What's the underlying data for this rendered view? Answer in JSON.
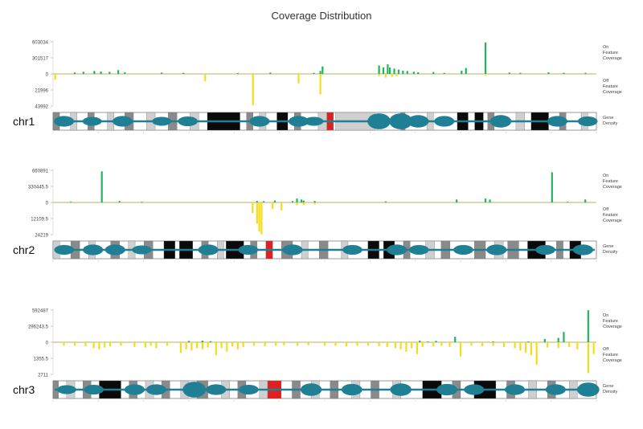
{
  "page": {
    "title": "Coverage Distribution"
  },
  "labels": {
    "on_feature": [
      "On",
      "Feature",
      "Coverage"
    ],
    "off_feature": [
      "Off",
      "Feature",
      "Coverage"
    ],
    "gene_density": [
      "Gene",
      "Density"
    ]
  },
  "colors": {
    "on_bar": "#22b35e",
    "off_bar": "#f5dc1a",
    "baseline": "#9c9c2a",
    "density": "#1f7f94",
    "centromere": "#e02020"
  },
  "chart_data": [
    {
      "type": "bar",
      "chromosome": "chr1",
      "x_range": [
        0,
        250
      ],
      "on_ticks": [
        "603034",
        "301517",
        "0"
      ],
      "off_ticks": [
        "21996",
        "43992"
      ],
      "on_max": 603034,
      "off_max": 43992,
      "on_bars": [
        {
          "x": 10,
          "v": 28000
        },
        {
          "x": 14,
          "v": 40000
        },
        {
          "x": 19,
          "v": 55000
        },
        {
          "x": 22,
          "v": 45000
        },
        {
          "x": 26,
          "v": 38000
        },
        {
          "x": 30,
          "v": 70000
        },
        {
          "x": 33,
          "v": 30000
        },
        {
          "x": 50,
          "v": 25000
        },
        {
          "x": 60,
          "v": 20000
        },
        {
          "x": 85,
          "v": 15000
        },
        {
          "x": 100,
          "v": 25000
        },
        {
          "x": 120,
          "v": 20000
        },
        {
          "x": 123,
          "v": 55000
        },
        {
          "x": 124,
          "v": 140000
        },
        {
          "x": 150,
          "v": 160000
        },
        {
          "x": 152,
          "v": 120000
        },
        {
          "x": 154,
          "v": 180000
        },
        {
          "x": 155,
          "v": 120000
        },
        {
          "x": 157,
          "v": 100000
        },
        {
          "x": 159,
          "v": 80000
        },
        {
          "x": 161,
          "v": 60000
        },
        {
          "x": 163,
          "v": 55000
        },
        {
          "x": 166,
          "v": 40000
        },
        {
          "x": 168,
          "v": 30000
        },
        {
          "x": 175,
          "v": 35000
        },
        {
          "x": 180,
          "v": 20000
        },
        {
          "x": 188,
          "v": 60000
        },
        {
          "x": 190,
          "v": 110000
        },
        {
          "x": 199,
          "v": 590000
        },
        {
          "x": 210,
          "v": 25000
        },
        {
          "x": 215,
          "v": 20000
        },
        {
          "x": 228,
          "v": 30000
        },
        {
          "x": 235,
          "v": 20000
        },
        {
          "x": 245,
          "v": 20000
        }
      ],
      "off_bars": [
        {
          "x": 1,
          "v": 8000
        },
        {
          "x": 70,
          "v": 10000
        },
        {
          "x": 92,
          "v": 43000
        },
        {
          "x": 113,
          "v": 13000
        },
        {
          "x": 123,
          "v": 28000
        },
        {
          "x": 150,
          "v": 3000
        },
        {
          "x": 153,
          "v": 5000
        },
        {
          "x": 156,
          "v": 4000
        },
        {
          "x": 158,
          "v": 3000
        },
        {
          "x": 199,
          "v": 2000
        }
      ],
      "bands": [
        {
          "s": 0,
          "e": 3,
          "c": "gray"
        },
        {
          "s": 8,
          "e": 11,
          "c": "light"
        },
        {
          "s": 16,
          "e": 19,
          "c": "gray"
        },
        {
          "s": 25,
          "e": 28,
          "c": "light"
        },
        {
          "s": 33,
          "e": 37,
          "c": "gray"
        },
        {
          "s": 43,
          "e": 47,
          "c": "light"
        },
        {
          "s": 53,
          "e": 57,
          "c": "gray"
        },
        {
          "s": 63,
          "e": 67,
          "c": "light"
        },
        {
          "s": 71,
          "e": 86,
          "c": "black"
        },
        {
          "s": 89,
          "e": 92,
          "c": "gray"
        },
        {
          "s": 95,
          "e": 98,
          "c": "light"
        },
        {
          "s": 103,
          "e": 108,
          "c": "black"
        },
        {
          "s": 111,
          "e": 114,
          "c": "gray"
        },
        {
          "s": 122,
          "e": 126,
          "c": "light"
        },
        {
          "s": 126,
          "e": 129,
          "c": "centromere"
        },
        {
          "s": 130,
          "e": 148,
          "c": "light"
        },
        {
          "s": 160,
          "e": 162,
          "c": "gray"
        },
        {
          "s": 172,
          "e": 175,
          "c": "light"
        },
        {
          "s": 186,
          "e": 191,
          "c": "black"
        },
        {
          "s": 194,
          "e": 198,
          "c": "black"
        },
        {
          "s": 200,
          "e": 203,
          "c": "gray"
        },
        {
          "s": 213,
          "e": 217,
          "c": "light"
        },
        {
          "s": 220,
          "e": 228,
          "c": "black"
        },
        {
          "s": 233,
          "e": 236,
          "c": "gray"
        },
        {
          "s": 243,
          "e": 246,
          "c": "light"
        }
      ],
      "blobs": [
        {
          "x": 5,
          "h": 0.6
        },
        {
          "x": 18,
          "h": 0.5
        },
        {
          "x": 32,
          "h": 0.6
        },
        {
          "x": 50,
          "h": 0.5
        },
        {
          "x": 62,
          "h": 0.55
        },
        {
          "x": 95,
          "h": 0.6
        },
        {
          "x": 113,
          "h": 0.6
        },
        {
          "x": 120,
          "h": 0.5
        },
        {
          "x": 150,
          "h": 0.9
        },
        {
          "x": 160,
          "h": 0.9
        },
        {
          "x": 168,
          "h": 0.7
        },
        {
          "x": 180,
          "h": 0.6
        },
        {
          "x": 206,
          "h": 0.7
        },
        {
          "x": 232,
          "h": 0.6
        },
        {
          "x": 246,
          "h": 0.55
        }
      ]
    },
    {
      "type": "bar",
      "chromosome": "chr2",
      "x_range": [
        0,
        245
      ],
      "on_ticks": [
        "660891",
        "330445.5",
        "0"
      ],
      "off_ticks": [
        "12109.5",
        "24219"
      ],
      "on_max": 660891,
      "off_max": 24219,
      "on_bars": [
        {
          "x": 8,
          "v": 15000
        },
        {
          "x": 22,
          "v": 640000
        },
        {
          "x": 30,
          "v": 30000
        },
        {
          "x": 40,
          "v": 15000
        },
        {
          "x": 92,
          "v": 30000
        },
        {
          "x": 95,
          "v": 25000
        },
        {
          "x": 100,
          "v": 40000
        },
        {
          "x": 108,
          "v": 30000
        },
        {
          "x": 110,
          "v": 80000
        },
        {
          "x": 112,
          "v": 60000
        },
        {
          "x": 113,
          "v": 40000
        },
        {
          "x": 118,
          "v": 30000
        },
        {
          "x": 150,
          "v": 20000
        },
        {
          "x": 182,
          "v": 60000
        },
        {
          "x": 195,
          "v": 80000
        },
        {
          "x": 197,
          "v": 60000
        },
        {
          "x": 225,
          "v": 620000
        },
        {
          "x": 232,
          "v": 15000
        },
        {
          "x": 240,
          "v": 60000
        }
      ],
      "off_bars": [
        {
          "x": 90,
          "v": 8000
        },
        {
          "x": 92,
          "v": 16000
        },
        {
          "x": 93,
          "v": 22000
        },
        {
          "x": 94,
          "v": 24000
        },
        {
          "x": 99,
          "v": 5000
        },
        {
          "x": 103,
          "v": 6000
        },
        {
          "x": 110,
          "v": 2000
        },
        {
          "x": 113,
          "v": 2000
        },
        {
          "x": 118,
          "v": 1500
        }
      ],
      "bands": [
        {
          "s": 0,
          "e": 3,
          "c": "light"
        },
        {
          "s": 8,
          "e": 12,
          "c": "gray"
        },
        {
          "s": 16,
          "e": 19,
          "c": "light"
        },
        {
          "s": 26,
          "e": 30,
          "c": "gray"
        },
        {
          "s": 34,
          "e": 37,
          "c": "light"
        },
        {
          "s": 41,
          "e": 45,
          "c": "gray"
        },
        {
          "s": 50,
          "e": 55,
          "c": "black"
        },
        {
          "s": 57,
          "e": 63,
          "c": "black"
        },
        {
          "s": 67,
          "e": 70,
          "c": "gray"
        },
        {
          "s": 74,
          "e": 77,
          "c": "light"
        },
        {
          "s": 78,
          "e": 86,
          "c": "black"
        },
        {
          "s": 89,
          "e": 92,
          "c": "gray"
        },
        {
          "s": 96,
          "e": 99,
          "c": "centromere"
        },
        {
          "s": 103,
          "e": 108,
          "c": "gray"
        },
        {
          "s": 112,
          "e": 115,
          "c": "light"
        },
        {
          "s": 120,
          "e": 124,
          "c": "gray"
        },
        {
          "s": 130,
          "e": 133,
          "c": "light"
        },
        {
          "s": 142,
          "e": 147,
          "c": "black"
        },
        {
          "s": 149,
          "e": 154,
          "c": "black"
        },
        {
          "s": 158,
          "e": 161,
          "c": "gray"
        },
        {
          "s": 168,
          "e": 172,
          "c": "light"
        },
        {
          "s": 175,
          "e": 179,
          "c": "gray"
        },
        {
          "s": 190,
          "e": 195,
          "c": "gray"
        },
        {
          "s": 199,
          "e": 203,
          "c": "light"
        },
        {
          "s": 205,
          "e": 210,
          "c": "gray"
        },
        {
          "s": 214,
          "e": 222,
          "c": "black"
        },
        {
          "s": 227,
          "e": 230,
          "c": "gray"
        },
        {
          "s": 233,
          "e": 238,
          "c": "black"
        }
      ],
      "blobs": [
        {
          "x": 5,
          "h": 0.55
        },
        {
          "x": 18,
          "h": 0.6
        },
        {
          "x": 28,
          "h": 0.6
        },
        {
          "x": 40,
          "h": 0.5
        },
        {
          "x": 70,
          "h": 0.6
        },
        {
          "x": 88,
          "h": 0.55
        },
        {
          "x": 108,
          "h": 0.6
        },
        {
          "x": 135,
          "h": 0.55
        },
        {
          "x": 155,
          "h": 0.6
        },
        {
          "x": 165,
          "h": 0.55
        },
        {
          "x": 185,
          "h": 0.55
        },
        {
          "x": 200,
          "h": 0.6
        },
        {
          "x": 222,
          "h": 0.55
        },
        {
          "x": 239,
          "h": 0.6
        }
      ]
    },
    {
      "type": "bar",
      "chromosome": "chr3",
      "x_range": [
        0,
        200
      ],
      "on_ticks": [
        "592487",
        "296243.5",
        "0"
      ],
      "off_ticks": [
        "1355.5",
        "2711"
      ],
      "on_max": 592487,
      "off_max": 2711,
      "on_bars": [
        {
          "x": 50,
          "v": 25000
        },
        {
          "x": 55,
          "v": 30000
        },
        {
          "x": 58,
          "v": 20000
        },
        {
          "x": 135,
          "v": 30000
        },
        {
          "x": 138,
          "v": 15000
        },
        {
          "x": 141,
          "v": 25000
        },
        {
          "x": 148,
          "v": 100000
        },
        {
          "x": 162,
          "v": 15000
        },
        {
          "x": 175,
          "v": 15000
        },
        {
          "x": 181,
          "v": 60000
        },
        {
          "x": 186,
          "v": 80000
        },
        {
          "x": 188,
          "v": 190000
        },
        {
          "x": 197,
          "v": 590000
        }
      ],
      "off_bars": [
        {
          "x": 4,
          "v": 300
        },
        {
          "x": 8,
          "v": 300
        },
        {
          "x": 12,
          "v": 350
        },
        {
          "x": 15,
          "v": 500
        },
        {
          "x": 17,
          "v": 600
        },
        {
          "x": 19,
          "v": 450
        },
        {
          "x": 21,
          "v": 350
        },
        {
          "x": 25,
          "v": 300
        },
        {
          "x": 30,
          "v": 400
        },
        {
          "x": 34,
          "v": 450
        },
        {
          "x": 36,
          "v": 300
        },
        {
          "x": 38,
          "v": 500
        },
        {
          "x": 42,
          "v": 300
        },
        {
          "x": 47,
          "v": 900
        },
        {
          "x": 49,
          "v": 600
        },
        {
          "x": 51,
          "v": 700
        },
        {
          "x": 53,
          "v": 500
        },
        {
          "x": 55,
          "v": 600
        },
        {
          "x": 57,
          "v": 450
        },
        {
          "x": 60,
          "v": 1100
        },
        {
          "x": 62,
          "v": 500
        },
        {
          "x": 64,
          "v": 800
        },
        {
          "x": 66,
          "v": 350
        },
        {
          "x": 68,
          "v": 600
        },
        {
          "x": 70,
          "v": 400
        },
        {
          "x": 74,
          "v": 300
        },
        {
          "x": 78,
          "v": 350
        },
        {
          "x": 82,
          "v": 300
        },
        {
          "x": 85,
          "v": 250
        },
        {
          "x": 90,
          "v": 300
        },
        {
          "x": 94,
          "v": 250
        },
        {
          "x": 100,
          "v": 300
        },
        {
          "x": 104,
          "v": 300
        },
        {
          "x": 108,
          "v": 350
        },
        {
          "x": 112,
          "v": 300
        },
        {
          "x": 116,
          "v": 300
        },
        {
          "x": 120,
          "v": 350
        },
        {
          "x": 123,
          "v": 400
        },
        {
          "x": 126,
          "v": 500
        },
        {
          "x": 128,
          "v": 600
        },
        {
          "x": 130,
          "v": 800
        },
        {
          "x": 132,
          "v": 500
        },
        {
          "x": 134,
          "v": 1000
        },
        {
          "x": 136,
          "v": 400
        },
        {
          "x": 140,
          "v": 350
        },
        {
          "x": 143,
          "v": 300
        },
        {
          "x": 146,
          "v": 400
        },
        {
          "x": 150,
          "v": 1200
        },
        {
          "x": 154,
          "v": 300
        },
        {
          "x": 158,
          "v": 350
        },
        {
          "x": 162,
          "v": 300
        },
        {
          "x": 166,
          "v": 400
        },
        {
          "x": 170,
          "v": 500
        },
        {
          "x": 172,
          "v": 700
        },
        {
          "x": 174,
          "v": 900
        },
        {
          "x": 176,
          "v": 1100
        },
        {
          "x": 178,
          "v": 1900
        },
        {
          "x": 182,
          "v": 450
        },
        {
          "x": 186,
          "v": 500
        },
        {
          "x": 190,
          "v": 400
        },
        {
          "x": 193,
          "v": 600
        },
        {
          "x": 197,
          "v": 2600
        },
        {
          "x": 199,
          "v": 1000
        }
      ],
      "bands": [
        {
          "s": 0,
          "e": 2,
          "c": "gray"
        },
        {
          "s": 5,
          "e": 8,
          "c": "light"
        },
        {
          "s": 11,
          "e": 14,
          "c": "gray"
        },
        {
          "s": 17,
          "e": 25,
          "c": "black"
        },
        {
          "s": 28,
          "e": 31,
          "c": "gray"
        },
        {
          "s": 34,
          "e": 37,
          "c": "light"
        },
        {
          "s": 40,
          "e": 43,
          "c": "gray"
        },
        {
          "s": 47,
          "e": 50,
          "c": "light"
        },
        {
          "s": 53,
          "e": 57,
          "c": "gray"
        },
        {
          "s": 62,
          "e": 65,
          "c": "light"
        },
        {
          "s": 68,
          "e": 71,
          "c": "gray"
        },
        {
          "s": 76,
          "e": 79,
          "c": "light"
        },
        {
          "s": 79,
          "e": 84,
          "c": "centromere"
        },
        {
          "s": 88,
          "e": 91,
          "c": "gray"
        },
        {
          "s": 95,
          "e": 98,
          "c": "light"
        },
        {
          "s": 102,
          "e": 105,
          "c": "gray"
        },
        {
          "s": 110,
          "e": 113,
          "c": "light"
        },
        {
          "s": 117,
          "e": 120,
          "c": "gray"
        },
        {
          "s": 125,
          "e": 128,
          "c": "light"
        },
        {
          "s": 136,
          "e": 143,
          "c": "black"
        },
        {
          "s": 147,
          "e": 150,
          "c": "gray"
        },
        {
          "s": 155,
          "e": 163,
          "c": "black"
        },
        {
          "s": 167,
          "e": 170,
          "c": "gray"
        },
        {
          "s": 175,
          "e": 178,
          "c": "light"
        },
        {
          "s": 182,
          "e": 185,
          "c": "gray"
        },
        {
          "s": 190,
          "e": 193,
          "c": "light"
        }
      ],
      "blobs": [
        {
          "x": 5,
          "h": 0.5
        },
        {
          "x": 15,
          "h": 0.55
        },
        {
          "x": 30,
          "h": 0.6
        },
        {
          "x": 38,
          "h": 0.6
        },
        {
          "x": 52,
          "h": 0.9
        },
        {
          "x": 60,
          "h": 0.6
        },
        {
          "x": 72,
          "h": 0.55
        },
        {
          "x": 95,
          "h": 0.7
        },
        {
          "x": 110,
          "h": 0.65
        },
        {
          "x": 128,
          "h": 0.7
        },
        {
          "x": 145,
          "h": 0.65
        },
        {
          "x": 155,
          "h": 0.6
        },
        {
          "x": 170,
          "h": 0.6
        },
        {
          "x": 185,
          "h": 0.6
        },
        {
          "x": 197,
          "h": 0.8
        }
      ]
    }
  ]
}
